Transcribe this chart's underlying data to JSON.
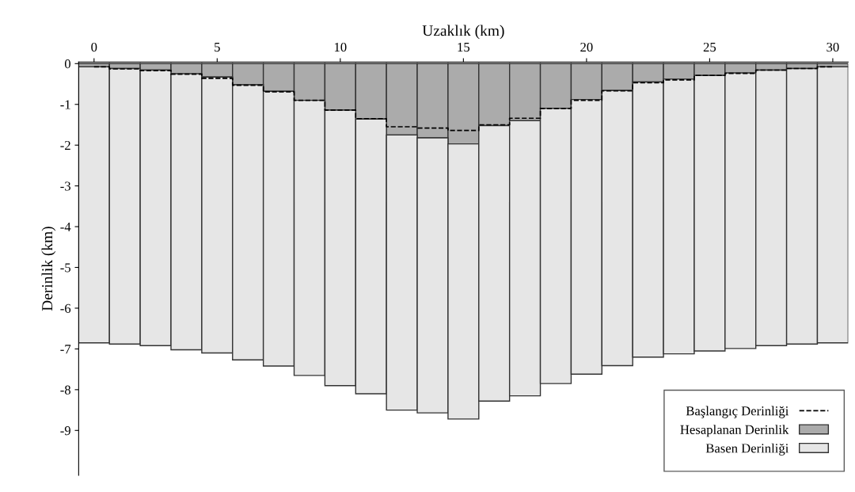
{
  "chart_data": {
    "type": "bar",
    "stacked": true,
    "xlabel": "Uzaklık (km)",
    "ylabel": "Derinlik (km)",
    "x": [
      0,
      1.25,
      2.5,
      3.75,
      5,
      6.25,
      7.5,
      8.75,
      10,
      11.25,
      12.5,
      13.75,
      15,
      16.25,
      17.5,
      18.75,
      20,
      21.25,
      22.5,
      23.75,
      25,
      26.25,
      27.5,
      28.75,
      30
    ],
    "xlim": [
      -0.625,
      30.625
    ],
    "xticks": [
      0,
      5,
      10,
      15,
      20,
      25,
      30
    ],
    "ylim": [
      -10.1,
      0.04
    ],
    "yticks": [
      0,
      -1,
      -2,
      -3,
      -4,
      -5,
      -6,
      -7,
      -8,
      -9
    ],
    "legend": "bottom right",
    "grid": false,
    "series": [
      {
        "name": "Hesaplanan Derinlik",
        "color": "#ababab",
        "values": [
          -0.08,
          -0.12,
          -0.16,
          -0.25,
          -0.33,
          -0.52,
          -0.68,
          -0.9,
          -1.14,
          -1.36,
          -1.75,
          -1.82,
          -1.97,
          -1.52,
          -1.4,
          -1.1,
          -0.88,
          -0.66,
          -0.45,
          -0.38,
          -0.29,
          -0.23,
          -0.16,
          -0.12,
          -0.08
        ]
      },
      {
        "name": "Basen Derinliği",
        "color": "#e6e6e6",
        "values": [
          -6.77,
          -6.76,
          -6.76,
          -6.77,
          -6.77,
          -6.75,
          -6.74,
          -6.75,
          -6.76,
          -6.74,
          -6.75,
          -6.75,
          -6.75,
          -6.76,
          -6.75,
          -6.75,
          -6.74,
          -6.75,
          -6.75,
          -6.74,
          -6.76,
          -6.76,
          -6.76,
          -6.76,
          -6.77
        ]
      },
      {
        "name": "Başlangıç Derinliği",
        "type": "step",
        "color": "#000000",
        "line_style": "dashed",
        "values": [
          -0.08,
          -0.13,
          -0.17,
          -0.26,
          -0.36,
          -0.53,
          -0.69,
          -0.9,
          -1.14,
          -1.35,
          -1.55,
          -1.58,
          -1.64,
          -1.5,
          -1.34,
          -1.1,
          -0.9,
          -0.67,
          -0.47,
          -0.4,
          -0.29,
          -0.24,
          -0.16,
          -0.12,
          -0.08
        ]
      }
    ]
  }
}
